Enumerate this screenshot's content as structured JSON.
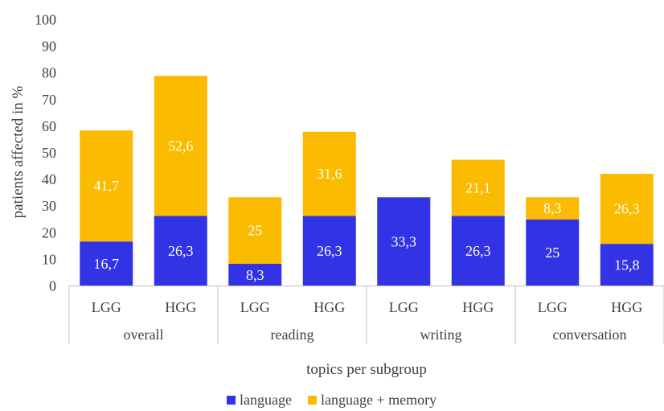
{
  "chart_data": {
    "type": "bar",
    "stacked": true,
    "categories": [
      "LGG",
      "HGG",
      "LGG",
      "HGG",
      "LGG",
      "HGG",
      "LGG",
      "HGG"
    ],
    "groups": [
      {
        "label": "overall"
      },
      {
        "label": "reading"
      },
      {
        "label": "writing"
      },
      {
        "label": "conversation"
      }
    ],
    "series": [
      {
        "name": "language",
        "color": "#3333e6",
        "values": [
          16.7,
          26.3,
          8.3,
          26.3,
          33.3,
          26.3,
          25,
          15.8
        ],
        "labels": [
          "16,7",
          "26,3",
          "8,3",
          "26,3",
          "33,3",
          "26,3",
          "25",
          "15,8"
        ]
      },
      {
        "name": "language + memory",
        "color": "#fbbb00",
        "values": [
          41.7,
          52.6,
          25,
          31.6,
          0,
          21.1,
          8.3,
          26.3
        ],
        "labels": [
          "41,7",
          "52,6",
          "25",
          "31,6",
          "",
          "21,1",
          "8,3",
          "26,3"
        ]
      }
    ],
    "xlabel": "topics per subgroup",
    "ylabel": "patients affected in %",
    "ylim": [
      0,
      100
    ],
    "yticks": [
      0,
      10,
      20,
      30,
      40,
      50,
      60,
      70,
      80,
      90,
      100
    ],
    "grid": false,
    "legend_position": "bottom"
  }
}
